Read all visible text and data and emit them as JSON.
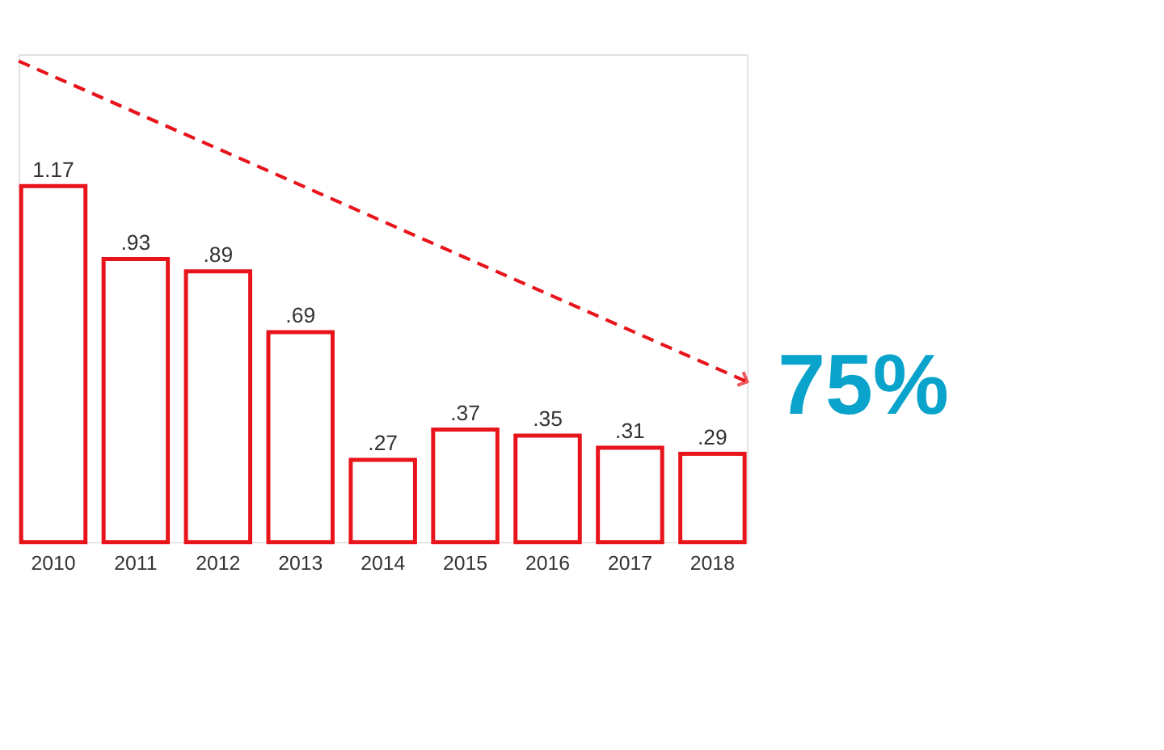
{
  "chart_data": {
    "type": "bar",
    "categories": [
      "2010",
      "2011",
      "2012",
      "2013",
      "2014",
      "2015",
      "2016",
      "2017",
      "2018"
    ],
    "values": [
      1.17,
      0.93,
      0.89,
      0.69,
      0.27,
      0.37,
      0.35,
      0.31,
      0.29
    ],
    "value_labels": [
      "1.17",
      ".93",
      ".89",
      ".69",
      ".27",
      ".37",
      ".35",
      ".31",
      ".29"
    ],
    "color": "#e8141b",
    "annotations": [
      "75%"
    ]
  }
}
